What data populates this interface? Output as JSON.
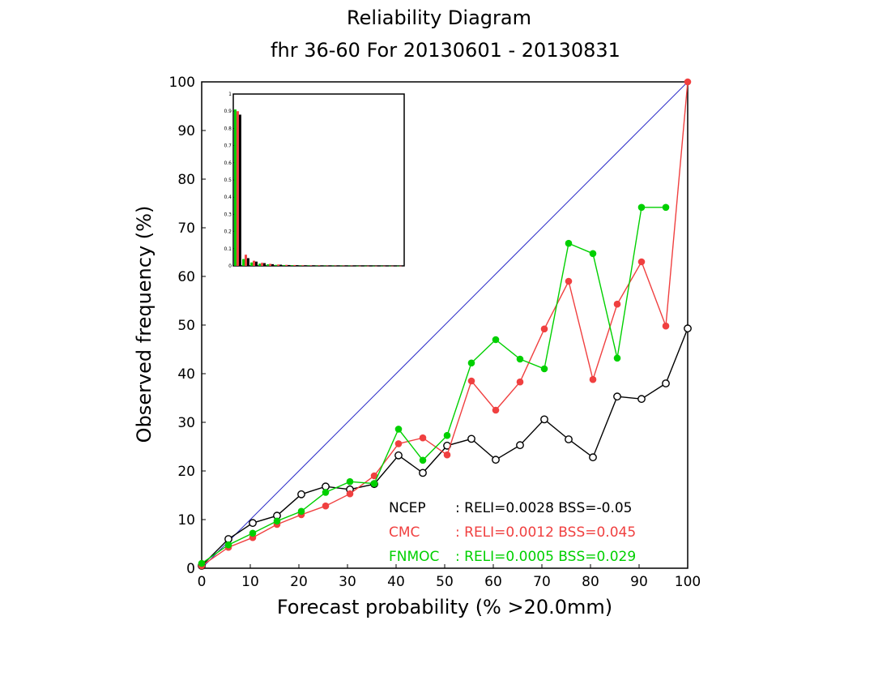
{
  "chart_data": {
    "type": "line",
    "title": "Reliability Diagram",
    "subtitle": "fhr 36-60 For 20130601 - 20130831",
    "xlabel": "Forecast probability (% >20.0mm)",
    "ylabel": "Observed frequency (%)",
    "xlim": [
      0,
      100
    ],
    "ylim": [
      0,
      100
    ],
    "x_ticks": [
      0,
      10,
      20,
      30,
      40,
      50,
      60,
      70,
      80,
      90,
      100
    ],
    "y_ticks": [
      0,
      10,
      20,
      30,
      40,
      50,
      60,
      70,
      80,
      90,
      100
    ],
    "grid": false,
    "diagonal_color": "#2b2bc8",
    "series": [
      {
        "name": "NCEP",
        "stats": ": RELI=0.0028 BSS=-0.05",
        "color": "#000000",
        "marker": "open-circle",
        "x": [
          0,
          5.5,
          10.5,
          15.5,
          20.5,
          25.5,
          30.5,
          35.5,
          40.5,
          45.5,
          50.5,
          55.5,
          60.5,
          65.5,
          70.5,
          75.5,
          80.5,
          85.5,
          90.5,
          95.5,
          100
        ],
        "y": [
          0.5,
          6,
          9.3,
          10.8,
          15.2,
          16.8,
          16.2,
          17.3,
          23.2,
          19.6,
          25.2,
          26.6,
          22.3,
          25.3,
          30.6,
          26.5,
          22.8,
          35.3,
          34.8,
          38,
          49.3
        ]
      },
      {
        "name": "CMC",
        "stats": ": RELI=0.0012 BSS=0.045",
        "color": "#f04040",
        "marker": "filled-circle",
        "x": [
          0,
          5.5,
          10.5,
          15.5,
          20.5,
          25.5,
          30.5,
          35.5,
          40.5,
          45.5,
          50.5,
          55.5,
          60.5,
          65.5,
          70.5,
          75.5,
          80.5,
          85.5,
          90.5,
          95.5,
          100
        ],
        "y": [
          0.5,
          4.3,
          6.3,
          9,
          11,
          12.8,
          15.3,
          19,
          25.6,
          26.8,
          23.3,
          38.5,
          32.5,
          38.3,
          49.2,
          59,
          38.8,
          54.3,
          63,
          49.8,
          100
        ]
      },
      {
        "name": "FNMOC",
        "stats": ": RELI=0.0005 BSS=0.029",
        "color": "#00d000",
        "marker": "filled-circle",
        "x": [
          0,
          5.5,
          10.5,
          15.5,
          20.5,
          25.5,
          30.5,
          35.5,
          40.5,
          45.5,
          50.5,
          55.5,
          60.5,
          65.5,
          70.5,
          75.5,
          80.5,
          85.5,
          90.5,
          95.5
        ],
        "y": [
          1,
          4.8,
          7.2,
          9.7,
          11.7,
          15.6,
          17.8,
          17.4,
          28.6,
          22.2,
          27.3,
          42.2,
          47,
          43,
          41,
          66.8,
          64.7,
          43.2,
          74.2,
          74.2
        ]
      }
    ],
    "inset_histogram": {
      "type": "bar",
      "ylim": [
        0,
        1
      ],
      "y_ticks": [
        "0",
        "0.1",
        "0.2",
        "0.3",
        "0.4",
        "0.5",
        "0.6",
        "0.7",
        "0.8",
        "0.9",
        "1"
      ],
      "series": [
        {
          "name": "FNMOC",
          "color": "#00d000",
          "values": [
            0.91,
            0.04,
            0.02,
            0.013,
            0.009,
            0.006,
            0.005,
            0.004,
            0.003,
            0.003,
            0.002,
            0.002,
            0.002,
            0.002,
            0.002,
            0.001,
            0.001,
            0.001,
            0.001,
            0.001,
            0.001
          ]
        },
        {
          "name": "CMC",
          "color": "#f04040",
          "values": [
            0.9,
            0.065,
            0.03,
            0.018,
            0.012,
            0.008,
            0.006,
            0.005,
            0.004,
            0.003,
            0.003,
            0.002,
            0.002,
            0.002,
            0.002,
            0.001,
            0.001,
            0.001,
            0.001,
            0.001,
            0.001
          ]
        },
        {
          "name": "NCEP",
          "color": "#000000",
          "values": [
            0.88,
            0.045,
            0.025,
            0.016,
            0.01,
            0.007,
            0.005,
            0.004,
            0.003,
            0.003,
            0.002,
            0.002,
            0.002,
            0.002,
            0.002,
            0.001,
            0.001,
            0.001,
            0.001,
            0.001,
            0.001
          ]
        }
      ]
    }
  }
}
